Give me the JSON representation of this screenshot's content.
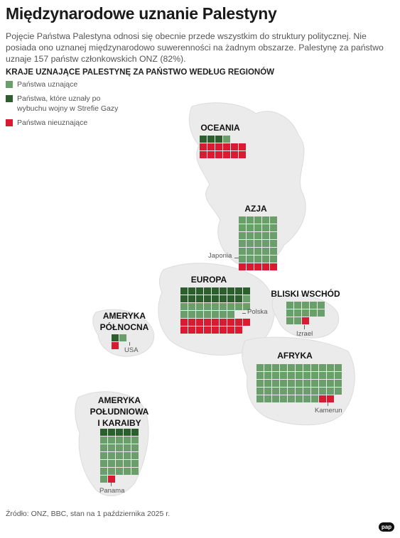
{
  "header": {
    "title": "Międzynarodowe uznanie Palestyny",
    "subtitle": "Pojęcie Państwa Palestyna odnosi się obecnie przede wszystkim do struktury politycznej. Nie posiada ono uznanej międzynarodowo suwerenności na żadnym obszarze. Palestynę za państwo uznaje 157 państw członkowskich ONZ (82%).",
    "section_title": "KRAJE UZNAJĄCE PALESTYNĘ ZA PAŃSTWO WEDŁUG REGIONÓW"
  },
  "colors": {
    "recognizing": "#6a9e6a",
    "recognized_after_gaza": "#2c5e2e",
    "not_recognizing": "#d91a30",
    "land": "#ebebeb",
    "land_edge": "#dcdcdc"
  },
  "legend": [
    {
      "key": "recognizing",
      "label": "Państwa uznające"
    },
    {
      "key": "recognized_after_gaza",
      "label": "Państwa, które uznały po wybuchu wojny w Strefie Gazy"
    },
    {
      "key": "not_recognizing",
      "label": "Państwa nieuznające"
    }
  ],
  "regions": [
    {
      "id": "oceania",
      "label": "OCEANIA",
      "recognized_after_gaza": 3,
      "recognizing": 1,
      "not_recognizing": 12
    },
    {
      "id": "azja",
      "label": "AZJA",
      "recognized_after_gaza": 0,
      "recognizing": 30,
      "not_recognizing": 5
    },
    {
      "id": "europa",
      "label": "EUROPA",
      "recognized_after_gaza": 17,
      "recognizing": 17,
      "not_recognizing": 17
    },
    {
      "id": "bliski_wschod",
      "label": "BLISKI WSCHÓD",
      "recognized_after_gaza": 0,
      "recognizing": 13,
      "not_recognizing": 1
    },
    {
      "id": "ameryka_polnocna",
      "label": "AMERYKA PÓŁNOCNA",
      "label_lines": [
        "AMERYKA",
        "PÓŁNOCNA"
      ],
      "recognized_after_gaza": 1,
      "recognizing": 1,
      "not_recognizing": 1
    },
    {
      "id": "afryka",
      "label": "AFRYKA",
      "recognized_after_gaza": 0,
      "recognizing": 52,
      "not_recognizing": 2
    },
    {
      "id": "ameryka_poludniowa",
      "label": "AMERYKA POŁUDNIOWA I KARAIBY",
      "label_lines": [
        "AMERYKA",
        "POŁUDNIOWA",
        "I KARAIBY"
      ],
      "recognized_after_gaza": 5,
      "recognizing": 26,
      "not_recognizing": 1
    }
  ],
  "callouts": {
    "japonia": "Japonia",
    "polska": "Polska",
    "izrael": "Izrael",
    "usa": "USA",
    "kamerun": "Kamerun",
    "panama": "Panama"
  },
  "footer": {
    "source": "Źródło: ONZ, BBC, stan na 1 października 2025 r.",
    "logo": "pap"
  }
}
